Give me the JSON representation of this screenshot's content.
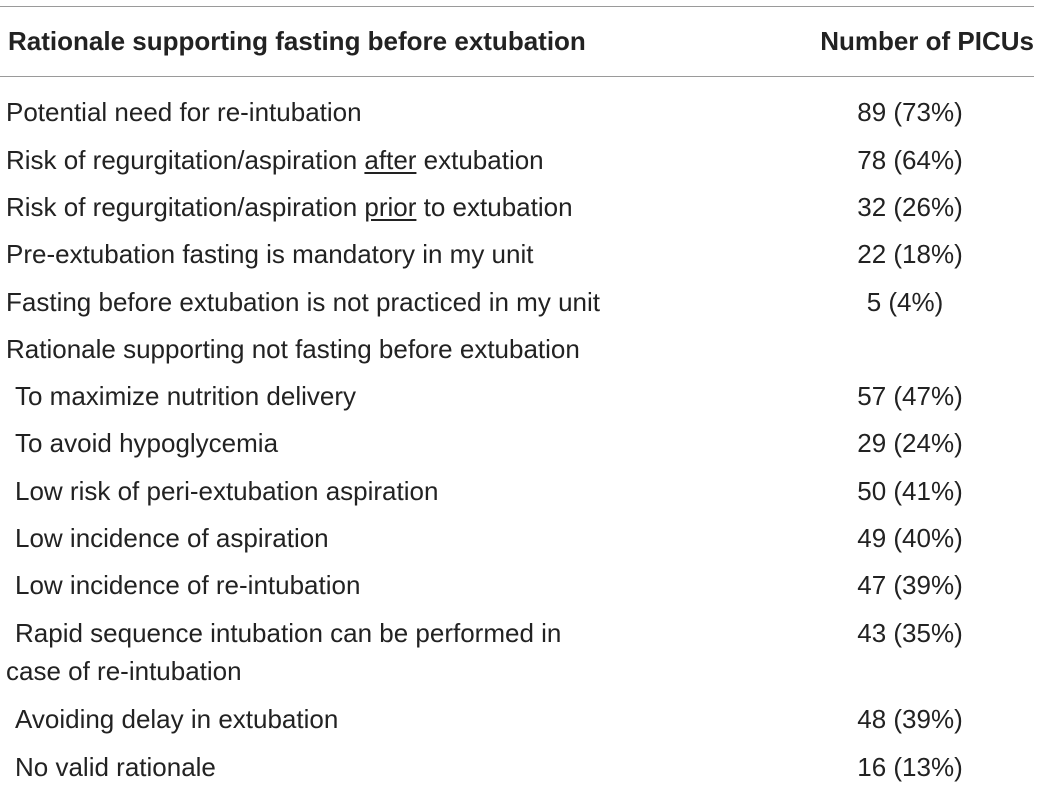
{
  "header": {
    "rationale_col": "Rationale supporting fasting before extubation",
    "count_col": "Number of PICUs"
  },
  "rows": [
    {
      "label": "Potential need for re-intubation",
      "value": "89 (73%)"
    },
    {
      "label_pre": "Risk of regurgitation/aspiration ",
      "label_em": "after",
      "label_post": " extubation",
      "value": "78 (64%)"
    },
    {
      "label_pre": "Risk of regurgitation/aspiration ",
      "label_em": "prior",
      "label_post": " to extubation",
      "value": "32 (26%)"
    },
    {
      "label": "Pre-extubation fasting is mandatory in my unit",
      "value": "22 (18%)"
    },
    {
      "label": "Fasting before extubation is not practiced in my unit",
      "value": "5 (4%)"
    },
    {
      "label": "Rationale supporting not fasting before extubation",
      "value": ""
    },
    {
      "label": "To maximize nutrition delivery",
      "value": "57 (47%)"
    },
    {
      "label": "To avoid hypoglycemia",
      "value": "29 (24%)"
    },
    {
      "label": "Low risk of peri-extubation aspiration",
      "value": "50 (41%)"
    },
    {
      "label": "Low incidence of aspiration",
      "value": "49 (40%)"
    },
    {
      "label": "Low incidence of re-intubation",
      "value": "47 (39%)"
    },
    {
      "label_line1": "Rapid sequence intubation can be performed in",
      "label_line2": "case of re-intubation",
      "value": "43 (35%)"
    },
    {
      "label": "Avoiding delay in extubation",
      "value": "48 (39%)"
    },
    {
      "label": "No valid rationale",
      "value": "16 (13%)"
    }
  ]
}
